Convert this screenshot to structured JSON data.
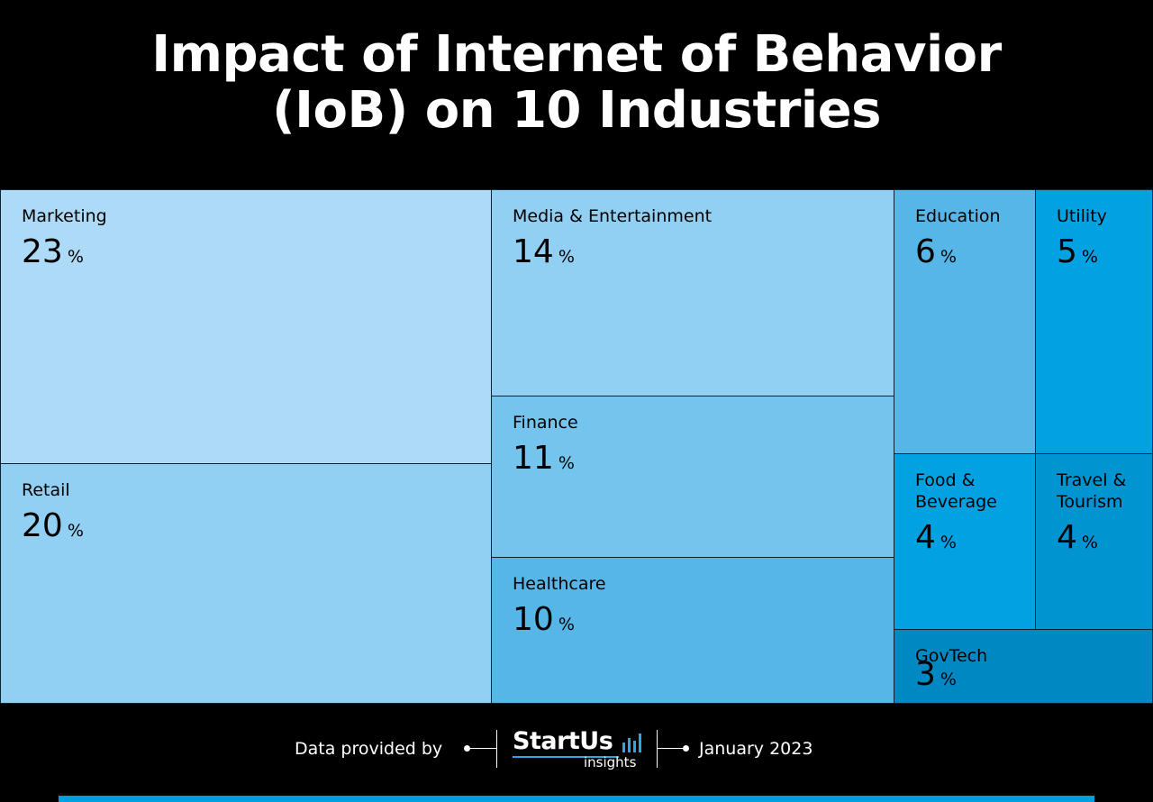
{
  "title_lines": [
    "Impact of Internet of Behavior",
    "(IoB) on 10 Industries"
  ],
  "chart_data": {
    "type": "treemap",
    "unit": "%",
    "items": [
      {
        "label": "Marketing",
        "value": 23,
        "color": "#acdaf7"
      },
      {
        "label": "Retail",
        "value": 20,
        "color": "#92d0f3"
      },
      {
        "label": "Media & Entertainment",
        "value": 14,
        "color": "#92d0f3"
      },
      {
        "label": "Finance",
        "value": 11,
        "color": "#74c4ee"
      },
      {
        "label": "Healthcare",
        "value": 10,
        "color": "#56b6e8"
      },
      {
        "label": "Education",
        "value": 6,
        "color": "#56b6e8"
      },
      {
        "label": "Utility",
        "value": 5,
        "color": "#00a2e2"
      },
      {
        "label": "Food & Beverage",
        "value": 4,
        "color": "#00a2e2"
      },
      {
        "label": "Travel & Tourism",
        "value": 4,
        "color": "#0094d1"
      },
      {
        "label": "GovTech",
        "value": 3,
        "color": "#0088c2"
      }
    ]
  },
  "footer": {
    "data_provided_by": "Data provided by",
    "logo_main": "StartUs",
    "logo_sub": "insights",
    "date": "January 2023"
  },
  "colors": {
    "background": "#000000",
    "accent": "#009fdf"
  }
}
